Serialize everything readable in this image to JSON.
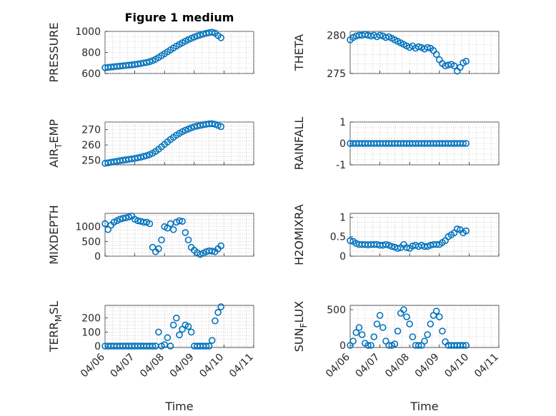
{
  "figure": {
    "title": "Figure 1 medium",
    "marker_color": "#0072BD"
  },
  "x_axis": {
    "label": "Time",
    "ticks": [
      0,
      1,
      2,
      3,
      4,
      5
    ],
    "tick_labels": [
      "04/06",
      "04/07",
      "04/08",
      "04/09",
      "04/10",
      "04/11"
    ]
  },
  "chart_data": [
    {
      "type": "scatter",
      "name": "pressure",
      "ylabel": "PRESSURE",
      "ylim": [
        600,
        1000
      ],
      "yticks": [
        600,
        800,
        1000
      ],
      "x": [
        0,
        0.1,
        0.2,
        0.3,
        0.4,
        0.5,
        0.6,
        0.7,
        0.8,
        0.9,
        1.0,
        1.1,
        1.2,
        1.3,
        1.4,
        1.5,
        1.6,
        1.7,
        1.8,
        1.9,
        2.0,
        2.1,
        2.2,
        2.3,
        2.4,
        2.5,
        2.6,
        2.7,
        2.8,
        2.9,
        3.0,
        3.1,
        3.2,
        3.3,
        3.4,
        3.5,
        3.6,
        3.7,
        3.8,
        3.9
      ],
      "y": [
        655,
        658,
        661,
        664,
        667,
        670,
        673,
        676,
        679,
        682,
        686,
        690,
        694,
        700,
        705,
        712,
        722,
        735,
        752,
        770,
        788,
        806,
        824,
        842,
        860,
        876,
        892,
        907,
        921,
        934,
        946,
        957,
        966,
        974,
        982,
        988,
        992,
        984,
        960,
        940
      ]
    },
    {
      "type": "scatter",
      "name": "theta",
      "ylabel": "THETA",
      "ylim": [
        275,
        280.5
      ],
      "yticks": [
        275,
        280
      ],
      "x": [
        0,
        0.1,
        0.2,
        0.3,
        0.4,
        0.5,
        0.6,
        0.7,
        0.8,
        0.9,
        1.0,
        1.1,
        1.2,
        1.3,
        1.4,
        1.5,
        1.6,
        1.7,
        1.8,
        1.9,
        2.0,
        2.1,
        2.2,
        2.3,
        2.4,
        2.5,
        2.6,
        2.7,
        2.8,
        2.9,
        3.0,
        3.1,
        3.2,
        3.3,
        3.4,
        3.5,
        3.6,
        3.7,
        3.8,
        3.9
      ],
      "y": [
        279.4,
        279.7,
        279.9,
        280.0,
        280.0,
        280.1,
        280.0,
        279.9,
        280.0,
        279.8,
        280.0,
        279.9,
        279.7,
        279.8,
        279.6,
        279.4,
        279.2,
        279.0,
        278.8,
        278.6,
        278.4,
        278.6,
        278.3,
        278.5,
        278.4,
        278.2,
        278.4,
        278.3,
        278.0,
        277.5,
        276.8,
        276.3,
        276.0,
        276.1,
        276.2,
        276.0,
        275.3,
        275.8,
        276.4,
        276.6
      ]
    },
    {
      "type": "scatter",
      "name": "air_temp",
      "ylabel": "AIR_TEMP",
      "ylim": [
        247,
        275
      ],
      "yticks": [
        250,
        260,
        270
      ],
      "x": [
        0,
        0.1,
        0.2,
        0.3,
        0.4,
        0.5,
        0.6,
        0.7,
        0.8,
        0.9,
        1.0,
        1.1,
        1.2,
        1.3,
        1.4,
        1.5,
        1.6,
        1.7,
        1.8,
        1.9,
        2.0,
        2.1,
        2.2,
        2.3,
        2.4,
        2.5,
        2.6,
        2.7,
        2.8,
        2.9,
        3.0,
        3.1,
        3.2,
        3.3,
        3.4,
        3.5,
        3.6,
        3.7,
        3.8,
        3.9
      ],
      "y": [
        248.0,
        248.3,
        248.7,
        249.0,
        249.3,
        249.7,
        250.0,
        250.3,
        250.6,
        250.9,
        251.2,
        251.6,
        252.0,
        252.5,
        253.0,
        253.7,
        254.6,
        255.8,
        257.2,
        258.8,
        260.4,
        262.0,
        263.6,
        265.0,
        266.4,
        267.6,
        268.7,
        269.6,
        270.4,
        271.2,
        271.9,
        272.4,
        272.8,
        273.2,
        273.5,
        273.8,
        273.9,
        273.5,
        272.8,
        272.0
      ]
    },
    {
      "type": "scatter",
      "name": "rainfall",
      "ylabel": "RAINFALL",
      "ylim": [
        -1,
        1
      ],
      "yticks": [
        -1,
        0,
        1
      ],
      "x": [
        0,
        0.1,
        0.2,
        0.3,
        0.4,
        0.5,
        0.6,
        0.7,
        0.8,
        0.9,
        1.0,
        1.1,
        1.2,
        1.3,
        1.4,
        1.5,
        1.6,
        1.7,
        1.8,
        1.9,
        2.0,
        2.1,
        2.2,
        2.3,
        2.4,
        2.5,
        2.6,
        2.7,
        2.8,
        2.9,
        3.0,
        3.1,
        3.2,
        3.3,
        3.4,
        3.5,
        3.6,
        3.7,
        3.8,
        3.9
      ],
      "y": [
        0,
        0,
        0,
        0,
        0,
        0,
        0,
        0,
        0,
        0,
        0,
        0,
        0,
        0,
        0,
        0,
        0,
        0,
        0,
        0,
        0,
        0,
        0,
        0,
        0,
        0,
        0,
        0,
        0,
        0,
        0,
        0,
        0,
        0,
        0,
        0,
        0,
        0,
        0,
        0
      ]
    },
    {
      "type": "scatter",
      "name": "mixdepth",
      "ylabel": "MIXDEPTH",
      "ylim": [
        0,
        1450
      ],
      "yticks": [
        0,
        500,
        1000
      ],
      "x": [
        0,
        0.1,
        0.2,
        0.3,
        0.4,
        0.5,
        0.6,
        0.7,
        0.8,
        0.9,
        1.0,
        1.1,
        1.2,
        1.3,
        1.4,
        1.5,
        1.6,
        1.7,
        1.8,
        1.9,
        2.0,
        2.1,
        2.2,
        2.3,
        2.4,
        2.5,
        2.6,
        2.7,
        2.8,
        2.9,
        3.0,
        3.1,
        3.2,
        3.3,
        3.4,
        3.5,
        3.6,
        3.7,
        3.8,
        3.9
      ],
      "y": [
        1100,
        900,
        1050,
        1150,
        1200,
        1250,
        1280,
        1300,
        1330,
        1360,
        1250,
        1200,
        1180,
        1150,
        1150,
        1100,
        300,
        150,
        250,
        550,
        1000,
        950,
        1100,
        900,
        1150,
        1200,
        1180,
        800,
        550,
        300,
        200,
        120,
        60,
        100,
        150,
        180,
        170,
        150,
        250,
        350
      ]
    },
    {
      "type": "scatter",
      "name": "h2omixra",
      "ylabel": "H2OMIXRA",
      "ylim": [
        0,
        1.1
      ],
      "yticks": [
        0,
        0.5,
        1
      ],
      "x": [
        0,
        0.1,
        0.2,
        0.3,
        0.4,
        0.5,
        0.6,
        0.7,
        0.8,
        0.9,
        1.0,
        1.1,
        1.2,
        1.3,
        1.4,
        1.5,
        1.6,
        1.7,
        1.8,
        1.9,
        2.0,
        2.1,
        2.2,
        2.3,
        2.4,
        2.5,
        2.6,
        2.7,
        2.8,
        2.9,
        3.0,
        3.1,
        3.2,
        3.3,
        3.4,
        3.5,
        3.6,
        3.7,
        3.8,
        3.9
      ],
      "y": [
        0.4,
        0.38,
        0.33,
        0.3,
        0.3,
        0.3,
        0.29,
        0.3,
        0.3,
        0.3,
        0.28,
        0.28,
        0.3,
        0.28,
        0.25,
        0.23,
        0.2,
        0.22,
        0.3,
        0.22,
        0.2,
        0.26,
        0.28,
        0.25,
        0.28,
        0.25,
        0.25,
        0.28,
        0.3,
        0.3,
        0.3,
        0.35,
        0.4,
        0.5,
        0.55,
        0.6,
        0.7,
        0.68,
        0.6,
        0.65
      ]
    },
    {
      "type": "scatter",
      "name": "terr_msl",
      "ylabel": "TERR_MSL",
      "ylim": [
        -10,
        290
      ],
      "yticks": [
        0,
        100,
        200
      ],
      "x": [
        0,
        0.1,
        0.2,
        0.3,
        0.4,
        0.5,
        0.6,
        0.7,
        0.8,
        0.9,
        1.0,
        1.1,
        1.2,
        1.3,
        1.4,
        1.5,
        1.6,
        1.7,
        1.8,
        1.9,
        2.0,
        2.1,
        2.2,
        2.3,
        2.4,
        2.5,
        2.6,
        2.7,
        2.8,
        2.9,
        3.0,
        3.1,
        3.2,
        3.3,
        3.4,
        3.5,
        3.6,
        3.7,
        3.8,
        3.9
      ],
      "y": [
        0,
        0,
        0,
        0,
        0,
        0,
        0,
        0,
        0,
        0,
        0,
        0,
        0,
        0,
        0,
        0,
        0,
        0,
        100,
        0,
        10,
        60,
        0,
        150,
        200,
        80,
        120,
        150,
        140,
        100,
        0,
        0,
        0,
        0,
        0,
        0,
        40,
        180,
        240,
        280
      ]
    },
    {
      "type": "scatter",
      "name": "sun_flux",
      "ylabel": "SUN_FLUX",
      "ylim": [
        -30,
        560
      ],
      "yticks": [
        0,
        500
      ],
      "x": [
        0,
        0.1,
        0.2,
        0.3,
        0.4,
        0.5,
        0.6,
        0.7,
        0.8,
        0.9,
        1.0,
        1.1,
        1.2,
        1.3,
        1.4,
        1.5,
        1.6,
        1.7,
        1.8,
        1.9,
        2.0,
        2.1,
        2.2,
        2.3,
        2.4,
        2.5,
        2.6,
        2.7,
        2.8,
        2.9,
        3.0,
        3.1,
        3.2,
        3.3,
        3.4,
        3.5,
        3.6,
        3.7,
        3.8,
        3.9
      ],
      "y": [
        0,
        60,
        180,
        250,
        150,
        30,
        0,
        0,
        120,
        300,
        420,
        250,
        60,
        0,
        0,
        20,
        200,
        450,
        500,
        400,
        300,
        120,
        0,
        0,
        0,
        60,
        150,
        300,
        420,
        480,
        400,
        200,
        50,
        0,
        0,
        0,
        0,
        0,
        0,
        0
      ]
    }
  ]
}
